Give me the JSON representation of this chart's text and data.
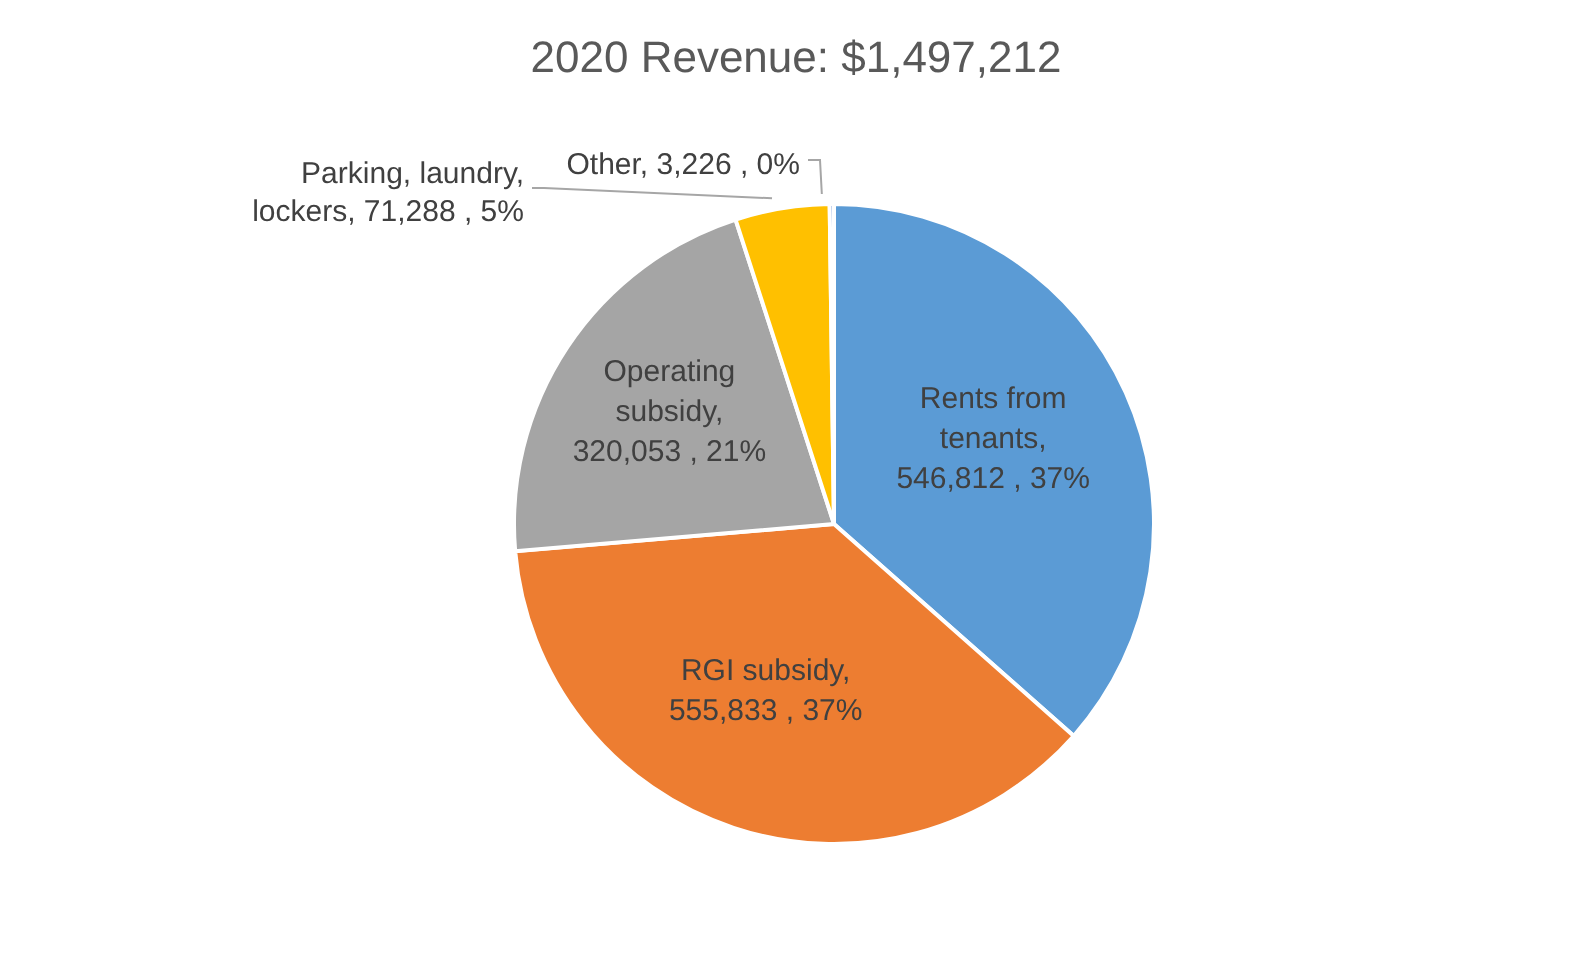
{
  "chart_data": {
    "type": "pie",
    "title": "2020 Revenue: $1,497,212",
    "categories": [
      "Rents from tenants",
      "RGI subsidy",
      "Operating subsidy",
      "Parking, laundry, lockers",
      "Other"
    ],
    "values": [
      546812,
      555833,
      320053,
      71288,
      3226
    ],
    "colors": [
      "#5b9bd5",
      "#ed7d31",
      "#a5a5a5",
      "#ffc000",
      "#4472c4"
    ],
    "value_labels": [
      ", 546,812 , 37%",
      ", 555,833 , 37%",
      ", 320,053 , 21%",
      ", 71,288 , 5%",
      ", 3,226 , 0%"
    ],
    "legend": false
  }
}
